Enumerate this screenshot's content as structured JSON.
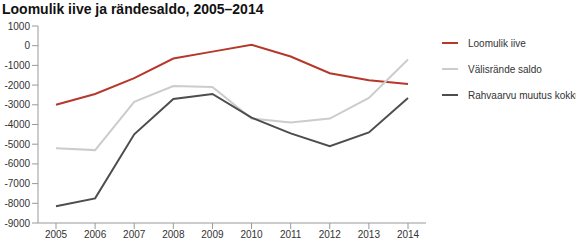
{
  "chart_data": {
    "type": "line",
    "title": "Loomulik iive ja rändesaldo, 2005–2014",
    "categories": [
      "2005",
      "2006",
      "2007",
      "2008",
      "2009",
      "2010",
      "2011",
      "2012",
      "2013",
      "2014"
    ],
    "series": [
      {
        "name": "Loomulik iive",
        "color": "#b5382b",
        "values": [
          -3000,
          -2450,
          -1650,
          -650,
          -300,
          50,
          -550,
          -1400,
          -1750,
          -1950
        ]
      },
      {
        "name": "Välisrände saldo",
        "color": "#cccccc",
        "values": [
          -5200,
          -5300,
          -2850,
          -2050,
          -2100,
          -3700,
          -3900,
          -3700,
          -2650,
          -700
        ]
      },
      {
        "name": "Rahvaarvu muutus kokku",
        "color": "#4d4d4d",
        "values": [
          -8150,
          -7750,
          -4500,
          -2700,
          -2450,
          -3650,
          -4450,
          -5100,
          -4400,
          -2650
        ]
      }
    ],
    "ylim": [
      -9000,
      1000
    ],
    "yticks": [
      -9000,
      -8000,
      -7000,
      -6000,
      -5000,
      -4000,
      -3000,
      -2000,
      -1000,
      0,
      1000
    ],
    "grid": false,
    "legend": "right"
  }
}
